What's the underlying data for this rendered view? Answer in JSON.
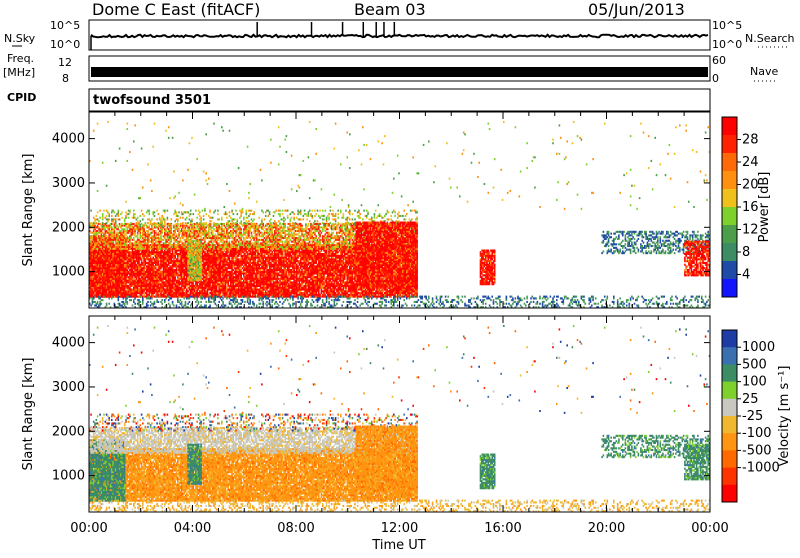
{
  "header": {
    "station": "Dome C East (fitACF)",
    "beam": "Beam 03",
    "date": "05/Jun/2013"
  },
  "left_labels": {
    "nsky": "N.Sky",
    "freq_line1": "Freq.",
    "freq_line2": "[MHz]",
    "cpid": "CPID"
  },
  "right_labels": {
    "nsearch": "N.Search",
    "nave": "Nave"
  },
  "top_panel": {
    "left_ticks": [
      "10^5",
      "10^0"
    ],
    "right_ticks": [
      "10^5",
      "10^0"
    ]
  },
  "freq_panel": {
    "left_ticks": [
      "12",
      "8"
    ],
    "right_ticks": [
      "60",
      "0"
    ]
  },
  "cpid_panel": {
    "text": "twofsound 3501"
  },
  "colors": {
    "power": [
      "#1414ff",
      "#1e4ba6",
      "#3c8c64",
      "#4c9e4a",
      "#7ed02c",
      "#f0c01c",
      "#ff9010",
      "#ff6a08",
      "#ff2200",
      "#ff0000"
    ],
    "velocity": [
      "#ff0000",
      "#ff3300",
      "#ff6a00",
      "#ff9510",
      "#f0b830",
      "#c8c8c0",
      "#7ed02c",
      "#3c8c64",
      "#3a6fb0",
      "#1e3ca6"
    ]
  },
  "chart_data": [
    {
      "type": "heatmap",
      "panel": "power",
      "xlabel": "",
      "ylabel": "Slant Range [km]",
      "xlim": [
        "00:00",
        "24:00"
      ],
      "ylim": [
        180,
        4600
      ],
      "y_ticks": [
        "1000",
        "2000",
        "3000",
        "4000"
      ],
      "colorbar": {
        "label": "Power [dB]",
        "ticks": [
          "4",
          "8",
          "12",
          "16",
          "20",
          "24",
          "28"
        ],
        "range": [
          0,
          32
        ]
      }
    },
    {
      "type": "heatmap",
      "panel": "velocity",
      "xlabel": "Time UT",
      "ylabel": "Slant Range [km]",
      "xlim": [
        "00:00",
        "24:00"
      ],
      "x_ticks": [
        "00:00",
        "04:00",
        "08:00",
        "12:00",
        "16:00",
        "20:00",
        "00:00"
      ],
      "ylim": [
        180,
        4600
      ],
      "y_ticks": [
        "1000",
        "2000",
        "3000",
        "4000"
      ],
      "colorbar": {
        "label": "Velocity [m s⁻¹]",
        "ticks": [
          "1000",
          "500",
          "100",
          "25",
          "-25",
          "-100",
          "-500",
          "-1000"
        ]
      }
    }
  ]
}
